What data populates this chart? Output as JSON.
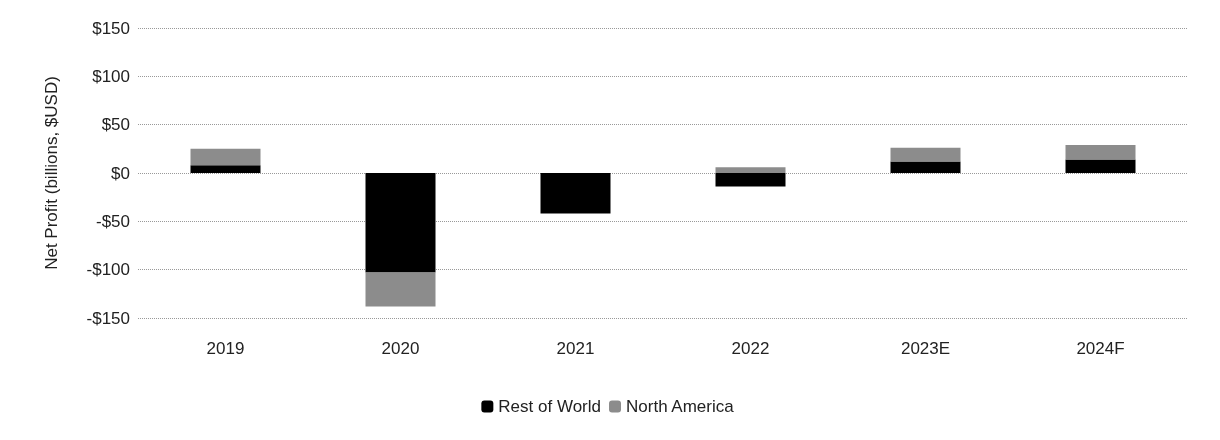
{
  "chart_data": {
    "type": "bar",
    "stacked": true,
    "ylabel": "Net Profit (billions, $USD)",
    "categories": [
      "2019",
      "2020",
      "2021",
      "2022",
      "2023E",
      "2024F"
    ],
    "series": [
      {
        "name": "Rest of World",
        "color": "#000000",
        "values": [
          8,
          -103,
          -42,
          -14,
          12,
          14
        ]
      },
      {
        "name": "North America",
        "color": "#8c8c8c",
        "values": [
          17,
          -35,
          0,
          6,
          14,
          15
        ]
      }
    ],
    "ylim": [
      -150,
      150
    ],
    "yticks": [
      {
        "value": -150,
        "label": "-$150"
      },
      {
        "value": -100,
        "label": "-$100"
      },
      {
        "value": -50,
        "label": "-$50"
      },
      {
        "value": 0,
        "label": "$0"
      },
      {
        "value": 50,
        "label": "$50"
      },
      {
        "value": 100,
        "label": "$100"
      },
      {
        "value": 150,
        "label": "$150"
      }
    ],
    "grid": true,
    "legend": "bottom"
  }
}
